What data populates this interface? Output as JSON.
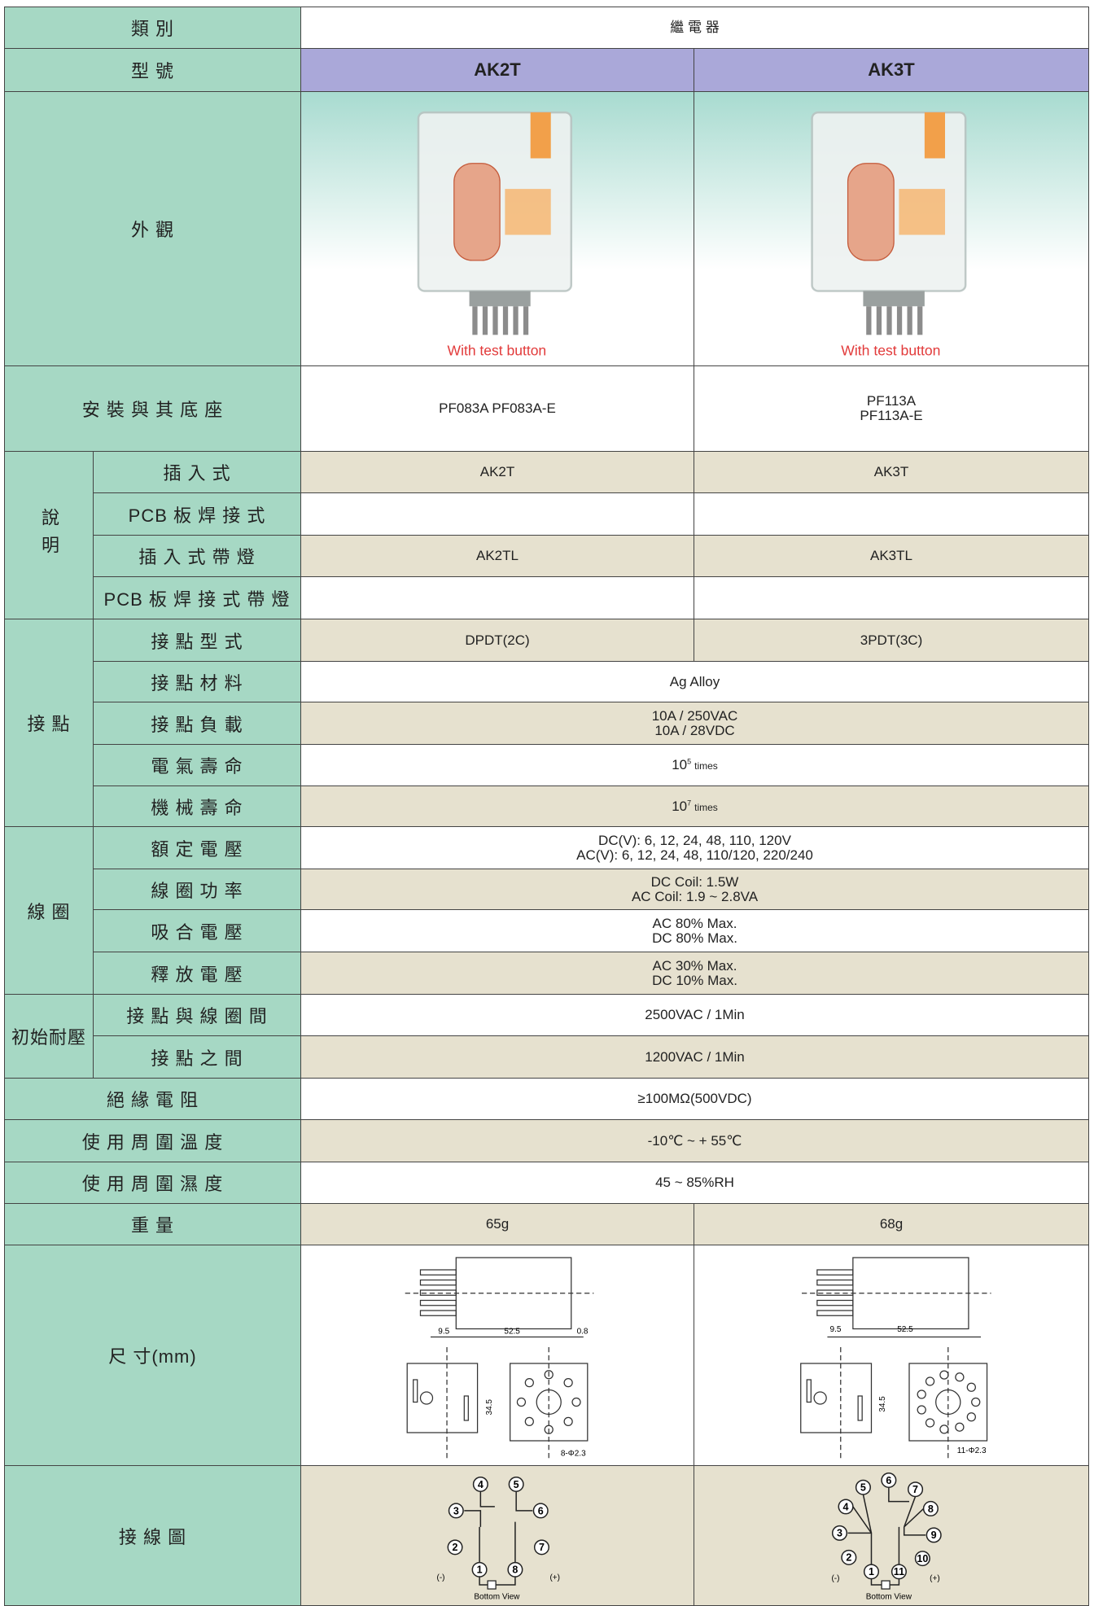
{
  "table": {
    "rows": [
      {
        "label": "類 別",
        "values": [
          "繼 電 器"
        ]
      },
      {
        "label": "型 號",
        "values": [
          "AK2T",
          "AK3T"
        ]
      },
      {
        "label": "外 觀",
        "captions": [
          "With test button",
          "With test button"
        ]
      },
      {
        "label": "安 裝 與 其 底 座",
        "values": [
          "PF083A  PF083A-E",
          "PF113A\nPF113A-E"
        ]
      },
      {
        "group": "說明",
        "vertical": true,
        "items": [
          {
            "label": "插 入 式",
            "values": [
              "AK2T",
              "AK3T"
            ]
          },
          {
            "label": "PCB 板 焊 接 式",
            "values": []
          },
          {
            "label": "插 入 式 帶 燈",
            "values": [
              "AK2TL",
              "AK3TL"
            ]
          },
          {
            "label": "PCB 板 焊 接 式 帶 燈",
            "values": []
          }
        ]
      },
      {
        "group": "接 點",
        "items": [
          {
            "label": "接 點 型 式",
            "values": [
              "DPDT(2C)",
              "3PDT(3C)"
            ]
          },
          {
            "label": "接 點 材 料",
            "values": [
              "Ag Alloy"
            ]
          },
          {
            "label": "接 點 負 載",
            "values": [
              "10A / 250VAC\n10A / 28VDC"
            ]
          },
          {
            "label": "電 氣 壽 命",
            "values": [
              {
                "base": "10",
                "exp": "5",
                "unit": "times"
              }
            ]
          },
          {
            "label": "機 械 壽 命",
            "values": [
              {
                "base": "10",
                "exp": "7",
                "unit": "times"
              }
            ]
          }
        ]
      },
      {
        "group": "線 圈",
        "items": [
          {
            "label": "額 定 電 壓",
            "values": [
              "DC(V): 6, 12, 24, 48, 110, 120V\nAC(V): 6, 12, 24, 48, 110/120, 220/240"
            ]
          },
          {
            "label": "線 圈 功 率",
            "values": [
              "DC Coil: 1.5W\nAC Coil: 1.9 ~ 2.8VA"
            ]
          },
          {
            "label": "吸 合 電 壓",
            "values": [
              "AC 80% Max.\nDC 80% Max."
            ]
          },
          {
            "label": "釋 放 電 壓",
            "values": [
              "AC 30% Max.\nDC 10% Max."
            ]
          }
        ]
      },
      {
        "group": "初始耐壓",
        "items": [
          {
            "label": "接 點 與 線 圈 間",
            "values": [
              "2500VAC / 1Min"
            ]
          },
          {
            "label": "接 點 之 間",
            "values": [
              "1200VAC / 1Min"
            ]
          }
        ]
      },
      {
        "label": "絕 緣 電 阻",
        "values": [
          "≥100MΩ(500VDC)"
        ]
      },
      {
        "label": "使 用 周 圍 溫 度",
        "values": [
          "-10℃ ~ + 55℃"
        ]
      },
      {
        "label": "使 用 周 圍 濕 度",
        "values": [
          "45 ~ 85%RH"
        ]
      },
      {
        "label": "重 量",
        "values": [
          "65g",
          "68g"
        ]
      },
      {
        "label": "尺 寸(mm)",
        "dimensions": [
          [
            "9.5",
            "52.5",
            "0.8",
            "34.5",
            "8-Φ2.3"
          ],
          [
            "9.5",
            "52.5",
            "34.5",
            "11-Φ2.3"
          ]
        ]
      },
      {
        "label": "接 線 圖",
        "wiring": [
          {
            "pins": [
              "1",
              "2",
              "3",
              "4",
              "5",
              "6",
              "7",
              "8"
            ],
            "minus": "(-)",
            "plus": "(+)",
            "view": "Bottom  View"
          },
          {
            "pins": [
              "1",
              "2",
              "3",
              "4",
              "5",
              "6",
              "7",
              "8",
              "9",
              "10",
              "11"
            ],
            "minus": "(-)",
            "plus": "(+)",
            "view": "Bottom  View"
          }
        ]
      }
    ]
  }
}
